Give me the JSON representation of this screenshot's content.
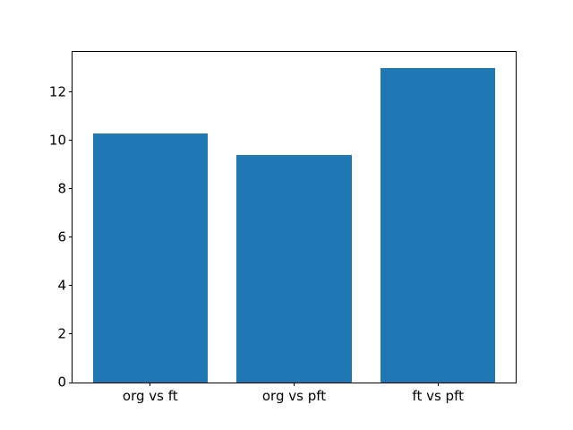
{
  "chart_data": {
    "type": "bar",
    "title": "",
    "xlabel": "",
    "ylabel": "",
    "categories": [
      "org vs ft",
      "org vs pft",
      "ft vs pft"
    ],
    "values": [
      10.3,
      9.4,
      13.0
    ],
    "yticks": [
      0,
      2,
      4,
      6,
      8,
      10,
      12
    ],
    "xlim": [
      -0.54,
      2.54
    ],
    "ylim": [
      0,
      13.65
    ],
    "bar_width": 0.8,
    "grid": false,
    "legend": "none",
    "colors": {
      "bar": "#1f77b4",
      "spine": "#000000",
      "tick": "#000000",
      "text": "#000000",
      "background": "#ffffff"
    }
  }
}
